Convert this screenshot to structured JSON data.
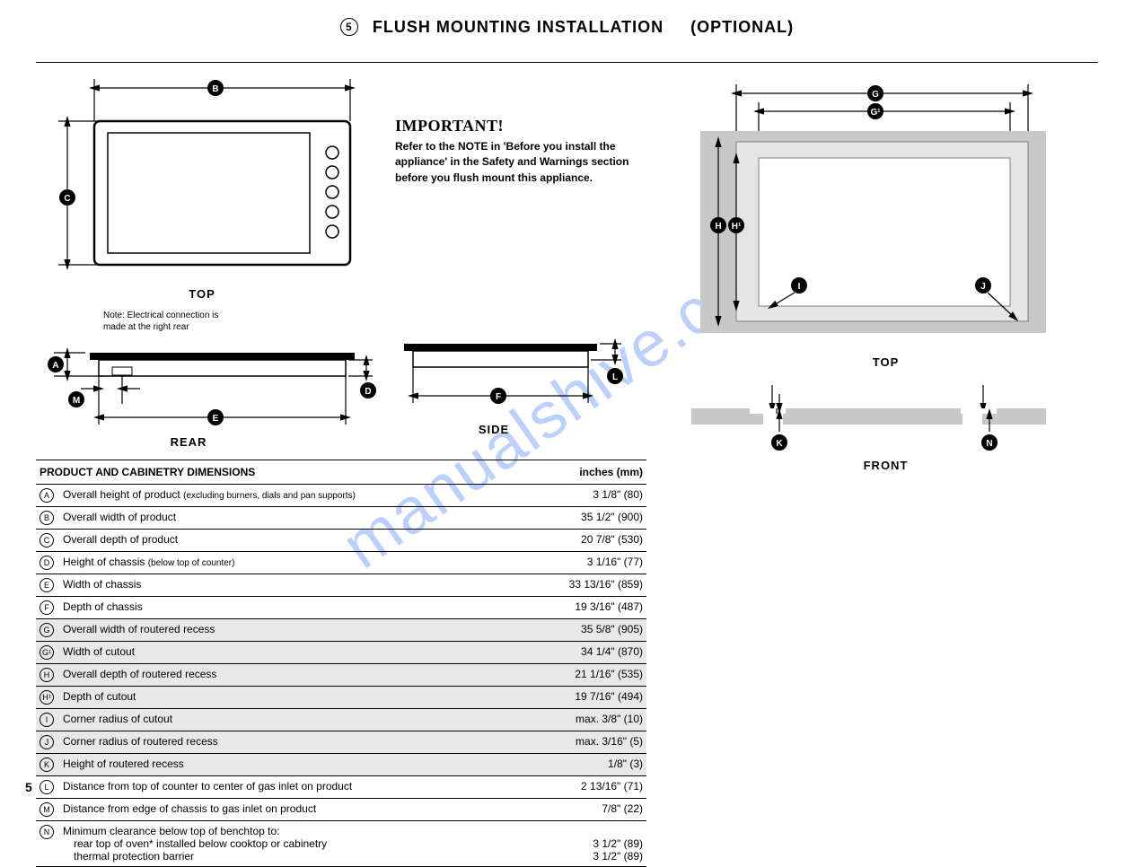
{
  "page": {
    "section_number": "5",
    "title": "FLUSH MOUNTING INSTALLATION",
    "title_suffix": "(OPTIONAL)",
    "page_number": "5",
    "watermark": "manualshive.com"
  },
  "important": {
    "heading": "IMPORTANT!",
    "body": "Refer to the NOTE in 'Before you install the appliance' in the Safety and Warnings section before you flush mount this appliance."
  },
  "diagram_labels": {
    "top_left_view": "TOP",
    "rear_view": "REAR",
    "side_view": "SIDE",
    "top_right_view": "TOP",
    "front_view": "FRONT",
    "note": "Note: Electrical connection is made at the right rear"
  },
  "markers": {
    "A": "A",
    "B": "B",
    "C": "C",
    "D": "D",
    "E": "E",
    "F": "F",
    "G": "G",
    "G1": "G¹",
    "H": "H",
    "H1": "H¹",
    "I": "I",
    "J": "J",
    "K": "K",
    "L": "L",
    "M": "M",
    "N": "N"
  },
  "table": {
    "header_left": "PRODUCT AND CABINETRY DIMENSIONS",
    "header_right": "inches (mm)",
    "rows": [
      {
        "key": "A",
        "desc": "Overall height of product",
        "sub": "(excluding burners, dials and pan supports)",
        "val": "3 1/8\" (80)",
        "shade": false
      },
      {
        "key": "B",
        "desc": "Overall width of product",
        "sub": "",
        "val": "35 1/2\" (900)",
        "shade": false
      },
      {
        "key": "C",
        "desc": "Overall depth of product",
        "sub": "",
        "val": "20 7/8\" (530)",
        "shade": false
      },
      {
        "key": "D",
        "desc": "Height of chassis",
        "sub": "(below top of counter)",
        "val": "3 1/16\" (77)",
        "shade": false
      },
      {
        "key": "E",
        "desc": "Width of chassis",
        "sub": "",
        "val": "33 13/16\" (859)",
        "shade": false
      },
      {
        "key": "F",
        "desc": "Depth of chassis",
        "sub": "",
        "val": "19 3/16\" (487)",
        "shade": false
      },
      {
        "key": "G",
        "desc": "Overall width of routered recess",
        "sub": "",
        "val": "35 5/8\" (905)",
        "shade": true
      },
      {
        "key": "G¹",
        "desc": "Width of cutout",
        "sub": "",
        "val": "34 1/4\" (870)",
        "shade": true
      },
      {
        "key": "H",
        "desc": "Overall depth of routered recess",
        "sub": "",
        "val": "21 1/16\" (535)",
        "shade": true
      },
      {
        "key": "H¹",
        "desc": "Depth of cutout",
        "sub": "",
        "val": "19 7/16\" (494)",
        "shade": true
      },
      {
        "key": "I",
        "desc": "Corner radius of cutout",
        "sub": "",
        "val": "max. 3/8\" (10)",
        "shade": true
      },
      {
        "key": "J",
        "desc": "Corner radius of routered recess",
        "sub": "",
        "val": "max. 3/16\" (5)",
        "shade": true
      },
      {
        "key": "K",
        "desc": "Height of routered recess",
        "sub": "",
        "val": "1/8\" (3)",
        "shade": true
      },
      {
        "key": "L",
        "desc": "Distance from top of counter to center of gas inlet on product",
        "sub": "",
        "val": "2 13/16\" (71)",
        "shade": false
      },
      {
        "key": "M",
        "desc": "Distance from edge of chassis to gas inlet on product",
        "sub": "",
        "val": "7/8\" (22)",
        "shade": false
      }
    ],
    "last_row": {
      "key": "N",
      "desc": "Minimum clearance below top of benchtop to:",
      "line1": "rear top of oven* installed below cooktop or cabinetry",
      "line2": "thermal protection barrier",
      "val1": "3 1/2\" (89)",
      "val2": "3 1/2\" (89)"
    }
  },
  "colors": {
    "grey": "#c8c8c8",
    "light_grey": "#e5e5e5",
    "row_shade": "#e8e8e8",
    "watermark": "#6a99ff"
  }
}
